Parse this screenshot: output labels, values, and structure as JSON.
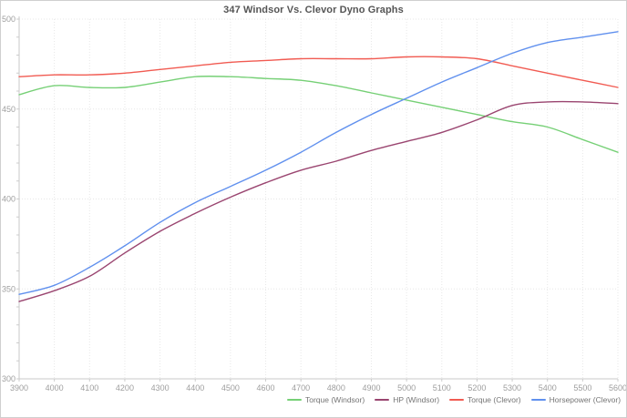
{
  "chart_data": {
    "type": "line",
    "title": "347 Windsor Vs. Clevor Dyno Graphs",
    "xlabel": "",
    "ylabel": "",
    "xlim": [
      3900,
      5600
    ],
    "ylim": [
      300,
      500
    ],
    "x_ticks": [
      3900,
      4000,
      4100,
      4200,
      4300,
      4400,
      4500,
      4600,
      4700,
      4800,
      4900,
      5000,
      5100,
      5200,
      5300,
      5400,
      5500,
      5600
    ],
    "y_ticks": [
      300,
      350,
      400,
      450,
      500
    ],
    "y_minor_tick_step": 10,
    "grid": true,
    "legend_position": "bottom",
    "x": [
      3900,
      4000,
      4100,
      4200,
      4300,
      4400,
      4500,
      4600,
      4700,
      4800,
      4900,
      5000,
      5100,
      5200,
      5300,
      5400,
      5500,
      5600
    ],
    "series": [
      {
        "name": "Torque (Windsor)",
        "color": "#76d076",
        "values": [
          458,
          463,
          462,
          462,
          465,
          468,
          468,
          467,
          466,
          463,
          459,
          455,
          451,
          447,
          443,
          440,
          433,
          426
        ]
      },
      {
        "name": "HP (Windsor)",
        "color": "#9a4570",
        "values": [
          343,
          349,
          357,
          370,
          382,
          392,
          401,
          409,
          416,
          421,
          427,
          432,
          437,
          444,
          452,
          454,
          454,
          453
        ]
      },
      {
        "name": "Torque (Clevor)",
        "color": "#f15b52",
        "values": [
          468,
          469,
          469,
          470,
          472,
          474,
          476,
          477,
          478,
          478,
          478,
          479,
          479,
          478,
          474,
          470,
          466,
          462
        ]
      },
      {
        "name": "Horsepower (Clevor)",
        "color": "#6090ee",
        "values": [
          347,
          352,
          362,
          374,
          387,
          398,
          407,
          416,
          426,
          437,
          447,
          456,
          465,
          473,
          481,
          487,
          490,
          493
        ]
      }
    ]
  },
  "style": {
    "background": "#ffffff",
    "border": "#cfcfcf",
    "grid_color": "#e7e7e7",
    "axis_color": "#c9c9c9",
    "tick_color": "#cccccc",
    "tick_label_color": "#9e9e9e",
    "title_color": "#555555",
    "legend_text_color": "#757575"
  }
}
